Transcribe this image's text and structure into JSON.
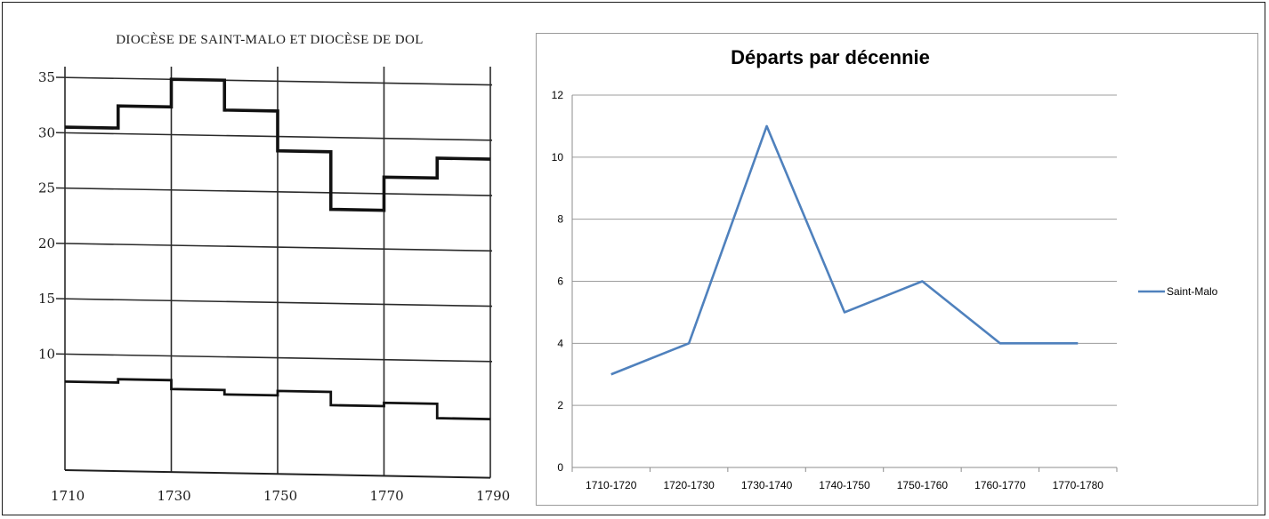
{
  "chart_data": [
    {
      "type": "line",
      "subtype": "step",
      "title": "DIOCÈSE DE SAINT-MALO ET DIOCÈSE DE DOL",
      "x_ticks": [
        "1710",
        "1730",
        "1750",
        "1770",
        "1790"
      ],
      "y_ticks": [
        "35",
        "30",
        "25",
        "20",
        "15",
        "10"
      ],
      "ylim": [
        0,
        37
      ],
      "xlim": [
        1710,
        1790
      ],
      "grid": true,
      "series": [
        {
          "x": [
            1710,
            1720,
            1730,
            1740,
            1750,
            1760,
            1770,
            1780,
            1790
          ],
          "values": [
            30.5,
            32.5,
            35,
            32.3,
            28.7,
            23.5,
            26.5,
            28.3,
            28.3
          ]
        },
        {
          "x": [
            1710,
            1720,
            1730,
            1740,
            1750,
            1760,
            1770,
            1780,
            1790
          ],
          "values": [
            7.5,
            7.8,
            7,
            6.6,
            7,
            5.8,
            6.1,
            4.8,
            4.8
          ]
        }
      ]
    },
    {
      "type": "line",
      "title": "Départs par décennie",
      "categories": [
        "1710-1720",
        "1720-1730",
        "1730-1740",
        "1740-1750",
        "1750-1760",
        "1760-1770",
        "1770-1780"
      ],
      "series": [
        {
          "name": "Saint-Malo",
          "values": [
            3,
            4,
            11,
            5,
            6,
            4,
            4
          ],
          "color": "#4f81bd"
        }
      ],
      "ylim": [
        0,
        12
      ],
      "y_ticks": [
        "0",
        "2",
        "4",
        "6",
        "8",
        "10",
        "12"
      ],
      "grid": true,
      "legend_position": "right"
    }
  ]
}
